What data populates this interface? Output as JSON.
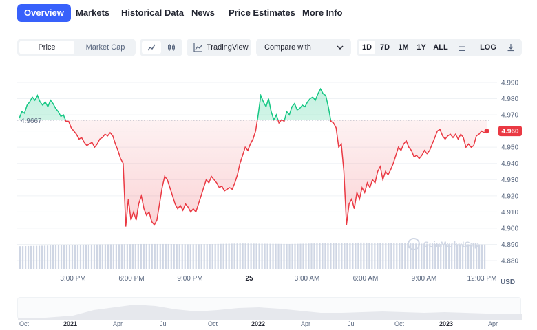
{
  "nav": {
    "tabs": [
      {
        "label": "Overview",
        "active": true
      },
      {
        "label": "Markets"
      },
      {
        "label": "Historical Data"
      },
      {
        "label": "News"
      },
      {
        "label": "Price Estimates"
      },
      {
        "label": "More Info"
      }
    ]
  },
  "toolbar": {
    "view_toggle": [
      "Price",
      "Market Cap"
    ],
    "tradingview_label": "TradingView",
    "compare_label": "Compare with",
    "ranges": [
      "1D",
      "7D",
      "1M",
      "1Y",
      "ALL"
    ],
    "log_label": "LOG"
  },
  "chart_data": {
    "type": "line",
    "y_axis_labels": [
      "4.990",
      "4.980",
      "4.970",
      "4.960",
      "4.950",
      "4.940",
      "4.930",
      "4.920",
      "4.910",
      "4.900",
      "4.890",
      "4.880"
    ],
    "ylim": [
      4.875,
      4.995
    ],
    "x_tick_labels": [
      "3:00 PM",
      "6:00 PM",
      "9:00 PM",
      "25",
      "3:00 AM",
      "6:00 AM",
      "9:00 AM",
      "12:03 PM"
    ],
    "currency_label": "USD",
    "open_price_label": "4.9667",
    "open_price": 4.9667,
    "current_price_label": "4.960",
    "current_price": 4.96,
    "watermark": "CoinMarketCap",
    "up_color": "#16c784",
    "down_color": "#ea3943",
    "series": [
      {
        "values": [
          4.968,
          4.972,
          4.971,
          4.976,
          4.978,
          4.981,
          4.979,
          4.982,
          4.978,
          4.976,
          4.978,
          4.975,
          4.979,
          4.977,
          4.974,
          4.972,
          4.969,
          4.97,
          4.966,
          4.966,
          4.962,
          4.96,
          4.958,
          4.955,
          4.956,
          4.953,
          4.951,
          4.952,
          4.953,
          4.95,
          4.952,
          4.955,
          4.956,
          4.958,
          4.957,
          4.959,
          4.957,
          4.952,
          4.948,
          4.943,
          4.94,
          4.901,
          4.918,
          4.905,
          4.91,
          4.905,
          4.915,
          4.92,
          4.912,
          4.908,
          4.91,
          4.904,
          4.902,
          4.905,
          4.915,
          4.925,
          4.932,
          4.93,
          4.925,
          4.92,
          4.915,
          4.912,
          4.914,
          4.911,
          4.915,
          4.913,
          4.91,
          4.912,
          4.91,
          4.915,
          4.92,
          4.925,
          4.93,
          4.928,
          4.932,
          4.93,
          4.928,
          4.925,
          4.926,
          4.923,
          4.924,
          4.925,
          4.924,
          4.928,
          4.933,
          4.94,
          4.945,
          4.95,
          4.948,
          4.952,
          4.955,
          4.96,
          4.97,
          4.982,
          4.978,
          4.975,
          4.98,
          4.972,
          4.967,
          4.97,
          4.965,
          4.967,
          4.966,
          4.972,
          4.97,
          4.975,
          4.977,
          4.973,
          4.974,
          4.976,
          4.975,
          4.978,
          4.98,
          4.981,
          4.979,
          4.983,
          4.986,
          4.983,
          4.982,
          4.975,
          4.966,
          4.965,
          4.962,
          4.95,
          4.952,
          4.935,
          4.902,
          4.915,
          4.918,
          4.912,
          4.922,
          4.918,
          4.925,
          4.922,
          4.928,
          4.925,
          4.93,
          4.928,
          4.935,
          4.938,
          4.93,
          4.935,
          4.933,
          4.936,
          4.94,
          4.945,
          4.95,
          4.948,
          4.952,
          4.954,
          4.95,
          4.948,
          4.944,
          4.945,
          4.943,
          4.945,
          4.948,
          4.946,
          4.948,
          4.952,
          4.956,
          4.96,
          4.961,
          4.957,
          4.955,
          4.957,
          4.958,
          4.956,
          4.958,
          4.955,
          4.958,
          4.956,
          4.95,
          4.952,
          4.95,
          4.951,
          4.957,
          4.958,
          4.96,
          4.959,
          4.96
        ]
      }
    ],
    "volume_level": [
      0.8,
      0.82,
      0.85,
      0.86,
      0.87,
      0.88,
      0.88,
      0.87,
      0.88,
      0.9,
      0.89,
      0.88,
      0.9,
      0.92,
      0.93,
      0.92,
      0.9,
      0.88,
      0.87,
      0.86
    ],
    "navigator_labels": [
      {
        "text": "Oct",
        "bold": false
      },
      {
        "text": "2021",
        "bold": true
      },
      {
        "text": "Apr",
        "bold": false
      },
      {
        "text": "Jul",
        "bold": false
      },
      {
        "text": "Oct",
        "bold": false
      },
      {
        "text": "2022",
        "bold": true
      },
      {
        "text": "Apr",
        "bold": false
      },
      {
        "text": "Jul",
        "bold": false
      },
      {
        "text": "Oct",
        "bold": false
      },
      {
        "text": "2023",
        "bold": true
      },
      {
        "text": "Apr",
        "bold": false
      }
    ]
  }
}
